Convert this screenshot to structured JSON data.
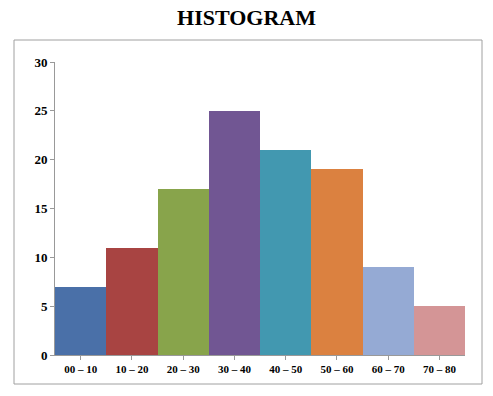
{
  "chart_data": {
    "type": "bar",
    "title": "HISTOGRAM",
    "categories": [
      "00 – 10",
      "10 – 20",
      "20 – 30",
      "30 – 40",
      "40 – 50",
      "50 – 60",
      "60 – 70",
      "70 – 80"
    ],
    "values": [
      7,
      11,
      17,
      25,
      21,
      19,
      9,
      5
    ],
    "colors": [
      "#4a70a8",
      "#a84442",
      "#88a44b",
      "#715693",
      "#4298b0",
      "#db8140",
      "#95aad4",
      "#d49596"
    ],
    "ylim": [
      0,
      30
    ],
    "yticks": [
      0,
      5,
      10,
      15,
      20,
      25,
      30
    ],
    "grid": false
  }
}
